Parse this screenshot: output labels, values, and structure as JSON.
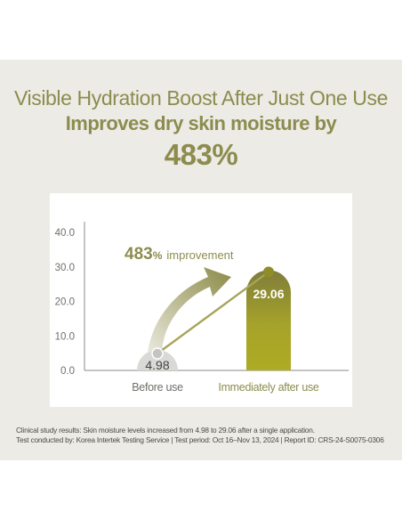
{
  "header": {
    "line1": "Visible Hydration Boost After Just One Use",
    "line2": "Improves dry skin moisture by",
    "line3": "483%"
  },
  "colors": {
    "accent": "#8d8c4e",
    "bar_after": "#a6a32a",
    "bar_before": "#d9d9d6",
    "axis_text": "#6f6f6b"
  },
  "chart_data": {
    "type": "bar",
    "categories": [
      "Before use",
      "Immediately after use"
    ],
    "values": [
      4.98,
      29.06
    ],
    "value_labels": [
      "4.98",
      "29.06"
    ],
    "yticks": [
      "40.0",
      "30.0",
      "20.0",
      "10.0",
      "0.0"
    ],
    "ylim": [
      0,
      40
    ],
    "annotation": {
      "value": "483",
      "suffix": "%",
      "text": "improvement"
    },
    "title": "",
    "xlabel": "",
    "ylabel": ""
  },
  "footnote": {
    "line1": "Clinical study results: Skin moisture levels increased from 4.98 to 29.06 after a single application.",
    "line2": "Test conducted by: Korea Intertek Testing Service | Test period: Oct 16–Nov 13, 2024 | Report ID: CRS-24-S0075-0306"
  }
}
